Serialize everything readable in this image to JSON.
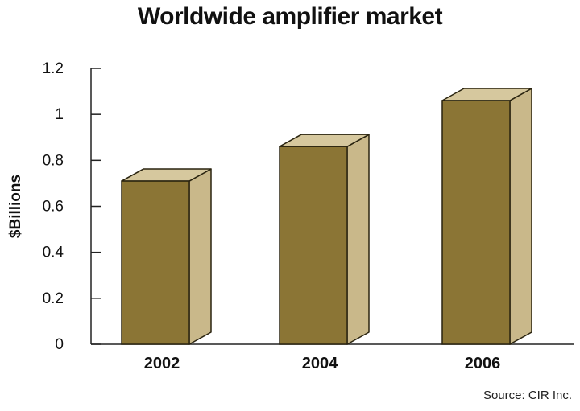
{
  "chart_data": {
    "type": "bar",
    "title": "Worldwide amplifier market",
    "ylabel": "$Billions",
    "xlabel": "",
    "categories": [
      "2002",
      "2004",
      "2006"
    ],
    "values": [
      0.71,
      0.86,
      1.06
    ],
    "ylim": [
      0,
      1.2
    ],
    "yticks": [
      "0",
      "0.2",
      "0.4",
      "0.6",
      "0.8",
      "1",
      "1.2"
    ],
    "grid": false,
    "style": "3d-bar"
  },
  "source": "Source: CIR Inc.",
  "colors": {
    "bar_front": "#8b7535",
    "bar_side": "#c9b88a",
    "bar_top": "#d6c89e",
    "outline": "#2a2410",
    "axis": "#222222"
  }
}
